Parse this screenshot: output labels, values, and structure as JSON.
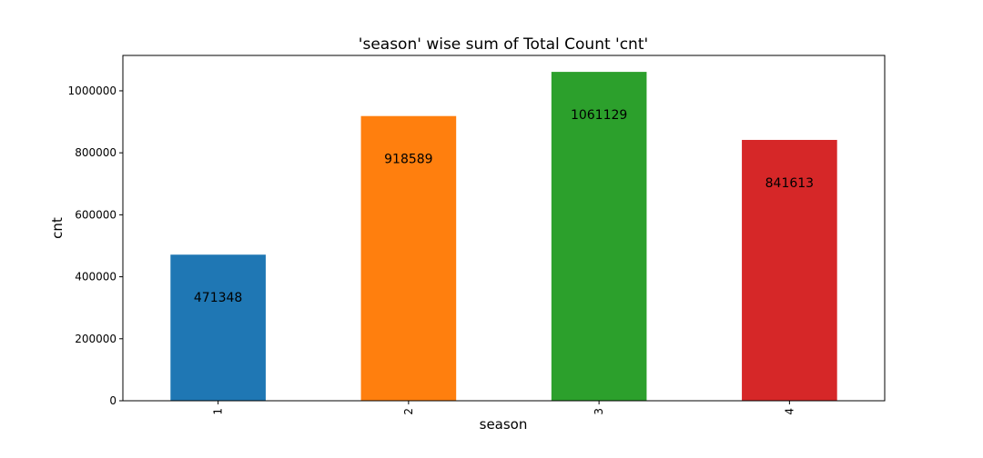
{
  "chart_data": {
    "type": "bar",
    "title": "'season' wise sum of Total Count 'cnt'",
    "xlabel": "season",
    "ylabel": "cnt",
    "categories": [
      "1",
      "2",
      "3",
      "4"
    ],
    "values": [
      471348,
      918589,
      1061129,
      841613
    ],
    "data_labels": [
      "471348",
      "918589",
      "1061129",
      "841613"
    ],
    "colors": [
      "#1f77b4",
      "#ff7f0e",
      "#2ca02c",
      "#d62728"
    ],
    "ylim": [
      0,
      1114186
    ],
    "yticks": [
      0,
      200000,
      400000,
      600000,
      800000,
      1000000
    ],
    "ytick_labels": [
      "0",
      "200000",
      "400000",
      "600000",
      "800000",
      "1000000"
    ],
    "xtick_rotation": "vertical",
    "grid": false,
    "legend": "none"
  }
}
